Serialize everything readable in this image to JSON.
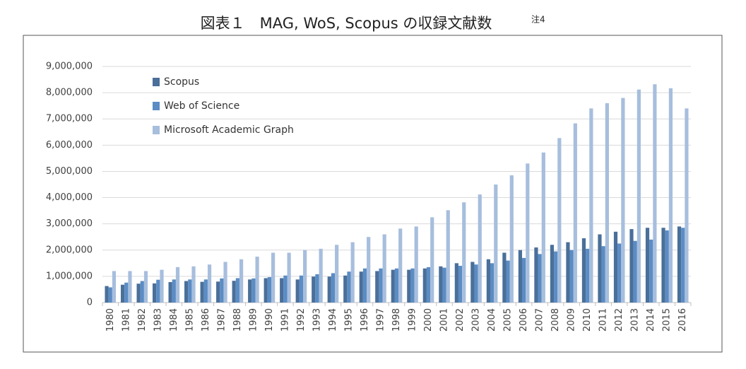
{
  "chart_data": {
    "type": "bar",
    "title": "図表１　MAG, WoS, Scopus の収録文献数",
    "title_superscript": "注4",
    "categories": [
      "1980",
      "1981",
      "1982",
      "1983",
      "1984",
      "1985",
      "1986",
      "1987",
      "1988",
      "1989",
      "1990",
      "1991",
      "1992",
      "1993",
      "1994",
      "1995",
      "1996",
      "1997",
      "1998",
      "1999",
      "2000",
      "2001",
      "2002",
      "2003",
      "2004",
      "2005",
      "2006",
      "2007",
      "2008",
      "2009",
      "2010",
      "2011",
      "2012",
      "2013",
      "2014",
      "2015",
      "2016"
    ],
    "series": [
      {
        "name": "Scopus",
        "color": "#4a6f99",
        "values": [
          630000,
          680000,
          720000,
          730000,
          780000,
          820000,
          790000,
          800000,
          830000,
          880000,
          930000,
          930000,
          880000,
          990000,
          990000,
          1030000,
          1180000,
          1200000,
          1250000,
          1250000,
          1300000,
          1380000,
          1500000,
          1550000,
          1650000,
          1900000,
          2000000,
          2100000,
          2200000,
          2300000,
          2450000,
          2600000,
          2700000,
          2800000,
          2850000,
          2850000,
          2900000
        ]
      },
      {
        "name": "Web of Science",
        "color": "#5b8cc4",
        "values": [
          580000,
          760000,
          820000,
          870000,
          880000,
          880000,
          880000,
          920000,
          930000,
          920000,
          970000,
          1030000,
          1030000,
          1080000,
          1120000,
          1180000,
          1300000,
          1300000,
          1300000,
          1300000,
          1350000,
          1330000,
          1400000,
          1450000,
          1500000,
          1600000,
          1700000,
          1850000,
          1950000,
          2000000,
          2050000,
          2150000,
          2250000,
          2350000,
          2400000,
          2750000,
          2850000
        ]
      },
      {
        "name": "Microsoft Academic Graph",
        "color": "#a7bedd",
        "values": [
          1200000,
          1200000,
          1200000,
          1250000,
          1350000,
          1380000,
          1450000,
          1550000,
          1650000,
          1750000,
          1900000,
          1900000,
          2000000,
          2050000,
          2200000,
          2300000,
          2500000,
          2600000,
          2820000,
          2900000,
          3250000,
          3520000,
          3820000,
          4120000,
          4500000,
          4850000,
          5300000,
          5720000,
          6270000,
          6830000,
          7400000,
          7600000,
          7800000,
          8120000,
          8320000,
          8170000,
          7400000
        ]
      }
    ],
    "ylim": [
      0,
      9000000
    ],
    "yticks": [
      0,
      {
        "value": 1000000,
        "label": "1,000,000"
      },
      {
        "value": 2000000,
        "label": "2,000,000"
      },
      {
        "value": 3000000,
        "label": "3,000,000"
      },
      {
        "value": 4000000,
        "label": "4,000,000"
      },
      {
        "value": 5000000,
        "label": "5,000,000"
      },
      {
        "value": 6000000,
        "label": "6,000,000"
      },
      {
        "value": 7000000,
        "label": "7,000,000"
      },
      {
        "value": 8000000,
        "label": "8,000,000"
      },
      {
        "value": 9000000,
        "label": "9,000,000"
      }
    ],
    "grid": true,
    "legend": "top-left"
  }
}
